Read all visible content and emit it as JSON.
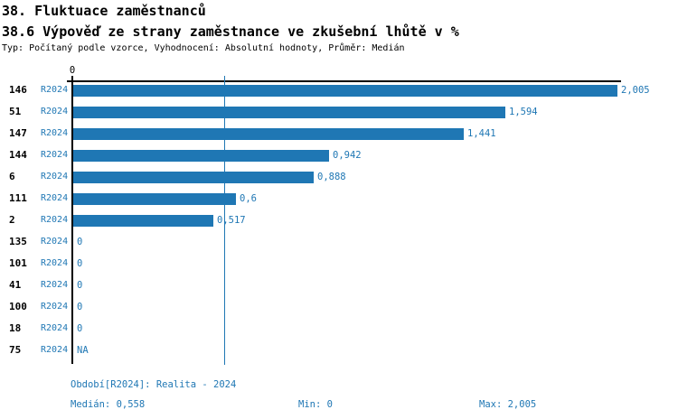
{
  "header": {
    "title": "38. Fluktuace zaměstnanců",
    "subtitle": "38.6 Výpověď ze strany zaměstnance ve zkušební lhůtě v %",
    "meta": "Typ: Počítaný podle vzorce, Vyhodnocení: Absolutní hodnoty, Průměr: Medián"
  },
  "chart_data": {
    "type": "bar",
    "orientation": "horizontal",
    "title": "38.6 Výpověď ze strany zaměstnance ve zkušební lhůtě v %",
    "categories": [
      "146",
      "51",
      "147",
      "144",
      "6",
      "111",
      "2",
      "135",
      "101",
      "41",
      "100",
      "18",
      "75"
    ],
    "series_label": "R2024",
    "values": [
      2.005,
      1.594,
      1.441,
      0.942,
      0.888,
      0.6,
      0.517,
      0,
      0,
      0,
      0,
      0,
      null
    ],
    "value_labels": [
      "2,005",
      "1,594",
      "1,441",
      "0,942",
      "0,888",
      "0,6",
      "0,517",
      "0",
      "0",
      "0",
      "0",
      "0",
      "NA"
    ],
    "xlim": [
      0,
      2.005
    ],
    "axis_tick_label": "0",
    "median_value": 0.558,
    "grid": false,
    "legend_position": "none",
    "bar_color": "#1f77b4",
    "label_color": "#1f77b4",
    "axis_color": "#000000"
  },
  "footer": {
    "period_label": "Období[R2024]: Realita - 2024",
    "median_label": "Medián: 0,558",
    "min_label": "Min: 0",
    "max_label": "Max: 2,005"
  }
}
